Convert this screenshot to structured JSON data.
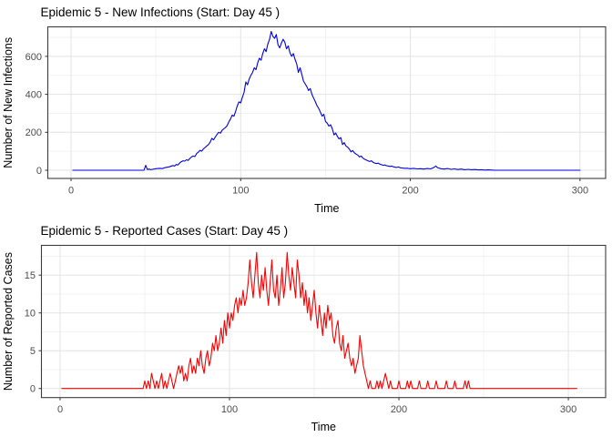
{
  "style": {
    "background": "#ffffff",
    "panel_background": "#ffffff",
    "panel_border": "#3c3c3c",
    "grid_major": "#e3e3e3",
    "grid_minor": "#efefef",
    "tick_mark": "#333333",
    "tick_label_color": "#4d4d4d",
    "title_color": "#000000"
  },
  "chart_data": [
    {
      "type": "line",
      "title": "Epidemic 5 - New Infections (Start: Day 45 )",
      "xlabel": "Time",
      "ylabel": "Number of New Infections",
      "line_color": "#0000e8",
      "grid": "major+minor",
      "legend": "none",
      "xlim": [
        -13.7,
        315.1
      ],
      "ylim": [
        -43.2,
        755.4
      ],
      "x_ticks": [
        0,
        100,
        200,
        300
      ],
      "y_ticks": [
        0,
        200,
        400,
        600
      ],
      "x_minor": [
        50,
        150,
        250
      ],
      "y_minor": [
        100,
        300,
        500,
        700
      ],
      "panel": {
        "l": 52.5,
        "t": 29.5,
        "r": 665,
        "b": 196
      },
      "points": [
        [
          1,
          0
        ],
        [
          43,
          0
        ],
        [
          44,
          26
        ],
        [
          45,
          4
        ],
        [
          46,
          6
        ],
        [
          47,
          3
        ],
        [
          48,
          5
        ],
        [
          50,
          8
        ],
        [
          52,
          10
        ],
        [
          54,
          9
        ],
        [
          55,
          13
        ],
        [
          56,
          15
        ],
        [
          58,
          18
        ],
        [
          60,
          25
        ],
        [
          61,
          22
        ],
        [
          62,
          30
        ],
        [
          63,
          28
        ],
        [
          64,
          38
        ],
        [
          65,
          45
        ],
        [
          66,
          50
        ],
        [
          67,
          48
        ],
        [
          68,
          55
        ],
        [
          69,
          52
        ],
        [
          70,
          62
        ],
        [
          71,
          70
        ],
        [
          72,
          75
        ],
        [
          73,
          72
        ],
        [
          74,
          88
        ],
        [
          75,
          95
        ],
        [
          76,
          105
        ],
        [
          77,
          100
        ],
        [
          78,
          112
        ],
        [
          79,
          120
        ],
        [
          80,
          128
        ],
        [
          81,
          135
        ],
        [
          82,
          148
        ],
        [
          83,
          168
        ],
        [
          84,
          160
        ],
        [
          85,
          175
        ],
        [
          86,
          188
        ],
        [
          87,
          200
        ],
        [
          88,
          195
        ],
        [
          89,
          210
        ],
        [
          90,
          218
        ],
        [
          91,
          225
        ],
        [
          92,
          235
        ],
        [
          93,
          255
        ],
        [
          94,
          270
        ],
        [
          95,
          290
        ],
        [
          96,
          285
        ],
        [
          97,
          310
        ],
        [
          98,
          340
        ],
        [
          99,
          360
        ],
        [
          100,
          355
        ],
        [
          101,
          385
        ],
        [
          102,
          410
        ],
        [
          103,
          465
        ],
        [
          104,
          450
        ],
        [
          105,
          480
        ],
        [
          106,
          500
        ],
        [
          107,
          515
        ],
        [
          108,
          540
        ],
        [
          109,
          530
        ],
        [
          110,
          565
        ],
        [
          111,
          590
        ],
        [
          112,
          580
        ],
        [
          113,
          615
        ],
        [
          114,
          640
        ],
        [
          115,
          625
        ],
        [
          116,
          665
        ],
        [
          117,
          690
        ],
        [
          118,
          731
        ],
        [
          119,
          705
        ],
        [
          120,
          695
        ],
        [
          121,
          715
        ],
        [
          122,
          660
        ],
        [
          123,
          645
        ],
        [
          124,
          670
        ],
        [
          125,
          690
        ],
        [
          126,
          675
        ],
        [
          127,
          640
        ],
        [
          128,
          655
        ],
        [
          129,
          620
        ],
        [
          130,
          600
        ],
        [
          131,
          615
        ],
        [
          132,
          585
        ],
        [
          133,
          560
        ],
        [
          134,
          515
        ],
        [
          135,
          540
        ],
        [
          136,
          505
        ],
        [
          137,
          470
        ],
        [
          138,
          455
        ],
        [
          139,
          440
        ],
        [
          140,
          420
        ],
        [
          141,
          430
        ],
        [
          142,
          400
        ],
        [
          143,
          380
        ],
        [
          144,
          360
        ],
        [
          145,
          340
        ],
        [
          146,
          325
        ],
        [
          147,
          305
        ],
        [
          148,
          285
        ],
        [
          149,
          295
        ],
        [
          150,
          257
        ],
        [
          151,
          248
        ],
        [
          152,
          232
        ],
        [
          153,
          240
        ],
        [
          154,
          218
        ],
        [
          155,
          186
        ],
        [
          156,
          196
        ],
        [
          157,
          178
        ],
        [
          158,
          165
        ],
        [
          159,
          172
        ],
        [
          160,
          135
        ],
        [
          161,
          146
        ],
        [
          162,
          128
        ],
        [
          163,
          122
        ],
        [
          164,
          112
        ],
        [
          165,
          97
        ],
        [
          166,
          104
        ],
        [
          167,
          92
        ],
        [
          168,
          85
        ],
        [
          169,
          80
        ],
        [
          170,
          70
        ],
        [
          171,
          75
        ],
        [
          172,
          64
        ],
        [
          173,
          58
        ],
        [
          174,
          54
        ],
        [
          175,
          50
        ],
        [
          176,
          46
        ],
        [
          177,
          50
        ],
        [
          178,
          42
        ],
        [
          179,
          38
        ],
        [
          180,
          35
        ],
        [
          181,
          38
        ],
        [
          182,
          32
        ],
        [
          183,
          29
        ],
        [
          184,
          26
        ],
        [
          185,
          28
        ],
        [
          186,
          24
        ],
        [
          187,
          22
        ],
        [
          188,
          20
        ],
        [
          189,
          22
        ],
        [
          190,
          18
        ],
        [
          191,
          16
        ],
        [
          192,
          15
        ],
        [
          193,
          17
        ],
        [
          194,
          13
        ],
        [
          195,
          12
        ],
        [
          196,
          11
        ],
        [
          197,
          10
        ],
        [
          198,
          11
        ],
        [
          199,
          9
        ],
        [
          200,
          8
        ],
        [
          202,
          10
        ],
        [
          204,
          7
        ],
        [
          206,
          8
        ],
        [
          208,
          6
        ],
        [
          210,
          9
        ],
        [
          212,
          7
        ],
        [
          214,
          16
        ],
        [
          215,
          22
        ],
        [
          216,
          14
        ],
        [
          218,
          8
        ],
        [
          220,
          6
        ],
        [
          222,
          9
        ],
        [
          224,
          5
        ],
        [
          226,
          7
        ],
        [
          228,
          4
        ],
        [
          230,
          6
        ],
        [
          232,
          3
        ],
        [
          234,
          5
        ],
        [
          236,
          3
        ],
        [
          238,
          4
        ],
        [
          240,
          2
        ],
        [
          242,
          3
        ],
        [
          244,
          1
        ],
        [
          246,
          2
        ],
        [
          248,
          1
        ],
        [
          250,
          0
        ],
        [
          300,
          0
        ]
      ]
    },
    {
      "type": "line",
      "title": "Epidemic 5 - Reported Cases (Start: Day 45 )",
      "xlabel": "Time",
      "ylabel": "Number of Reported Cases",
      "line_color": "#fb0000",
      "grid": "major+minor",
      "legend": "none",
      "xlim": [
        -11.0,
        322.0
      ],
      "ylim": [
        -1.2,
        18.94
      ],
      "x_ticks": [
        0,
        100,
        200,
        300
      ],
      "y_ticks": [
        0,
        5,
        10,
        15
      ],
      "x_minor": [
        50,
        150,
        250
      ],
      "y_minor": [
        2.5,
        7.5,
        12.5,
        17.5
      ],
      "panel": {
        "l": 45.5,
        "t": 29.5,
        "r": 665,
        "b": 196.7
      },
      "points": [
        [
          1,
          0
        ],
        [
          49,
          0
        ],
        [
          50,
          1
        ],
        [
          51,
          0
        ],
        [
          52,
          1
        ],
        [
          53,
          0
        ],
        [
          54,
          2
        ],
        [
          55,
          1
        ],
        [
          56,
          0
        ],
        [
          57,
          1
        ],
        [
          58,
          0
        ],
        [
          59,
          1
        ],
        [
          60,
          2
        ],
        [
          61,
          0
        ],
        [
          62,
          1
        ],
        [
          63,
          0
        ],
        [
          64,
          1
        ],
        [
          65,
          2
        ],
        [
          66,
          1
        ],
        [
          67,
          0
        ],
        [
          68,
          1
        ],
        [
          69,
          2
        ],
        [
          70,
          3
        ],
        [
          71,
          2
        ],
        [
          72,
          3
        ],
        [
          73,
          1
        ],
        [
          74,
          2
        ],
        [
          75,
          1
        ],
        [
          76,
          3
        ],
        [
          77,
          4
        ],
        [
          78,
          2
        ],
        [
          79,
          3
        ],
        [
          80,
          2
        ],
        [
          81,
          4
        ],
        [
          82,
          3
        ],
        [
          83,
          5
        ],
        [
          84,
          3
        ],
        [
          85,
          2
        ],
        [
          86,
          4
        ],
        [
          87,
          5
        ],
        [
          88,
          3
        ],
        [
          89,
          4
        ],
        [
          90,
          6
        ],
        [
          91,
          5
        ],
        [
          92,
          7
        ],
        [
          93,
          5
        ],
        [
          94,
          6
        ],
        [
          95,
          8
        ],
        [
          96,
          6
        ],
        [
          97,
          9
        ],
        [
          98,
          7
        ],
        [
          99,
          10
        ],
        [
          100,
          8
        ],
        [
          101,
          10
        ],
        [
          102,
          9
        ],
        [
          103,
          11
        ],
        [
          104,
          12
        ],
        [
          105,
          10
        ],
        [
          106,
          12
        ],
        [
          107,
          11
        ],
        [
          108,
          13
        ],
        [
          109,
          11
        ],
        [
          110,
          12
        ],
        [
          111,
          14
        ],
        [
          112,
          17
        ],
        [
          113,
          14
        ],
        [
          114,
          12
        ],
        [
          115,
          15
        ],
        [
          116,
          18
        ],
        [
          117,
          14
        ],
        [
          118,
          12
        ],
        [
          119,
          15
        ],
        [
          120,
          13
        ],
        [
          121,
          16
        ],
        [
          122,
          13
        ],
        [
          123,
          11
        ],
        [
          124,
          14
        ],
        [
          125,
          17
        ],
        [
          126,
          13
        ],
        [
          127,
          12
        ],
        [
          128,
          15
        ],
        [
          129,
          11
        ],
        [
          130,
          13
        ],
        [
          131,
          16
        ],
        [
          132,
          12
        ],
        [
          133,
          14
        ],
        [
          134,
          18
        ],
        [
          135,
          15
        ],
        [
          136,
          13
        ],
        [
          137,
          16
        ],
        [
          138,
          14
        ],
        [
          139,
          12
        ],
        [
          140,
          17
        ],
        [
          141,
          15
        ],
        [
          142,
          12
        ],
        [
          143,
          14
        ],
        [
          144,
          11
        ],
        [
          145,
          13
        ],
        [
          146,
          10
        ],
        [
          147,
          12
        ],
        [
          148,
          9
        ],
        [
          149,
          11
        ],
        [
          150,
          13
        ],
        [
          151,
          10
        ],
        [
          152,
          8
        ],
        [
          153,
          11
        ],
        [
          154,
          9
        ],
        [
          155,
          7
        ],
        [
          156,
          10
        ],
        [
          157,
          8
        ],
        [
          158,
          11
        ],
        [
          159,
          9
        ],
        [
          160,
          10
        ],
        [
          161,
          7
        ],
        [
          162,
          6
        ],
        [
          163,
          8
        ],
        [
          164,
          9
        ],
        [
          165,
          6
        ],
        [
          166,
          5
        ],
        [
          167,
          7
        ],
        [
          168,
          4
        ],
        [
          169,
          5
        ],
        [
          170,
          6
        ],
        [
          171,
          4
        ],
        [
          172,
          3
        ],
        [
          173,
          4
        ],
        [
          174,
          2
        ],
        [
          175,
          3
        ],
        [
          176,
          4
        ],
        [
          177,
          7
        ],
        [
          178,
          5
        ],
        [
          179,
          3
        ],
        [
          180,
          2
        ],
        [
          181,
          1
        ],
        [
          182,
          0
        ],
        [
          183,
          1
        ],
        [
          184,
          0
        ],
        [
          186,
          0
        ],
        [
          187,
          1
        ],
        [
          188,
          0
        ],
        [
          189,
          1
        ],
        [
          190,
          0
        ],
        [
          191,
          1
        ],
        [
          192,
          2
        ],
        [
          193,
          1
        ],
        [
          194,
          0
        ],
        [
          195,
          1
        ],
        [
          196,
          0
        ],
        [
          199,
          0
        ],
        [
          200,
          1
        ],
        [
          201,
          0
        ],
        [
          204,
          0
        ],
        [
          205,
          1
        ],
        [
          206,
          0
        ],
        [
          207,
          1
        ],
        [
          208,
          0
        ],
        [
          211,
          0
        ],
        [
          212,
          1
        ],
        [
          213,
          0
        ],
        [
          216,
          0
        ],
        [
          217,
          1
        ],
        [
          218,
          0
        ],
        [
          221,
          0
        ],
        [
          222,
          1
        ],
        [
          223,
          0
        ],
        [
          227,
          0
        ],
        [
          228,
          1
        ],
        [
          229,
          0
        ],
        [
          232,
          0
        ],
        [
          233,
          1
        ],
        [
          234,
          0
        ],
        [
          238,
          0
        ],
        [
          239,
          1
        ],
        [
          240,
          0
        ],
        [
          241,
          1
        ],
        [
          242,
          0
        ],
        [
          305,
          0
        ]
      ]
    }
  ]
}
